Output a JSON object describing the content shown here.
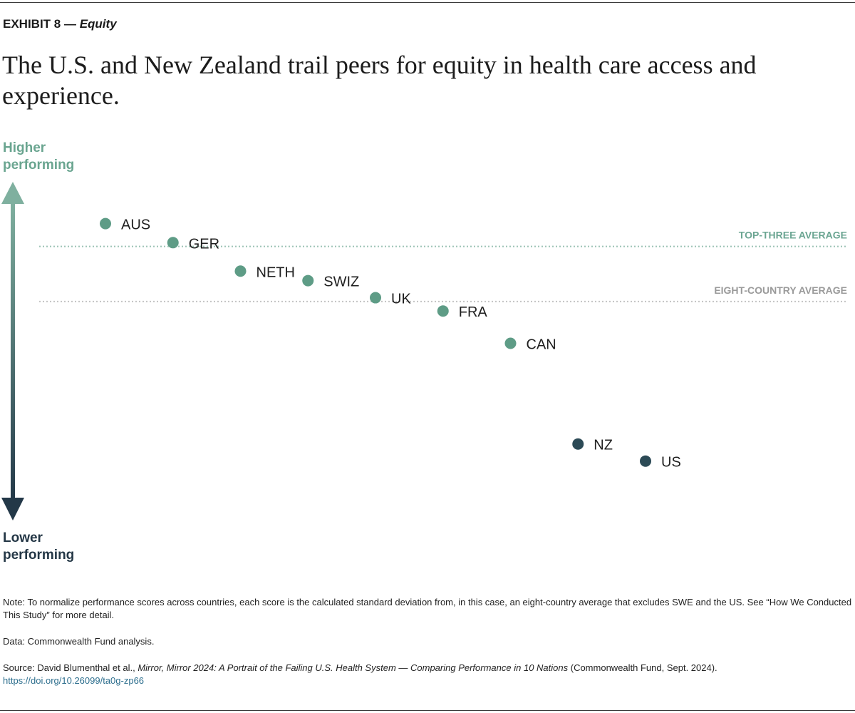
{
  "header": {
    "exhibit_label": "EXHIBIT 8 —",
    "exhibit_topic": "Equity",
    "title": "The U.S. and New Zealand trail peers for equity in health care access and experience."
  },
  "chart_data": {
    "type": "scatter",
    "title": "The U.S. and New Zealand trail peers for equity in health care access and experience.",
    "axis": {
      "top_label_line1": "Higher",
      "top_label_line2": "performing",
      "bottom_label_line1": "Lower",
      "bottom_label_line2": "performing",
      "orientation": "vertical",
      "grid": false,
      "ylim": [
        -0.95,
        0.6
      ]
    },
    "categories": [
      "AUS",
      "GER",
      "NETH",
      "SWIZ",
      "UK",
      "FRA",
      "CAN",
      "NZ",
      "US"
    ],
    "values": [
      0.5,
      0.4,
      0.25,
      0.2,
      0.11,
      0.04,
      -0.13,
      -0.66,
      -0.75
    ],
    "point_group": [
      "high",
      "high",
      "high",
      "high",
      "high",
      "high",
      "high",
      "low",
      "low"
    ],
    "reference_lines": [
      {
        "label": "TOP-THREE AVERAGE",
        "value": 0.38,
        "color": "#6ba592"
      },
      {
        "label": "EIGHT-COUNTRY AVERAGE",
        "value": 0.09,
        "color": "#9a9a9a"
      }
    ],
    "colors": {
      "high": "#5e9c86",
      "low": "#2c4a56",
      "axis_top": "#7fb09f",
      "axis_bottom": "#233848",
      "top_label": "#6aa590",
      "bottom_label": "#243746"
    }
  },
  "notes": {
    "note": "Note: To normalize performance scores across countries, each score is the calculated standard deviation from, in this case, an eight-country average that excludes SWE and the US. See “How We Conducted This Study” for more detail.",
    "data": "Data: Commonwealth Fund analysis.",
    "source_prefix": "Source: David Blumenthal et al.,",
    "source_title": "Mirror, Mirror 2024: A Portrait of the Failing U.S. Health System — Comparing Performance in 10 Nations",
    "source_suffix": "(Commonwealth Fund, Sept. 2024).",
    "doi": "https://doi.org/10.26099/ta0g-zp66"
  }
}
